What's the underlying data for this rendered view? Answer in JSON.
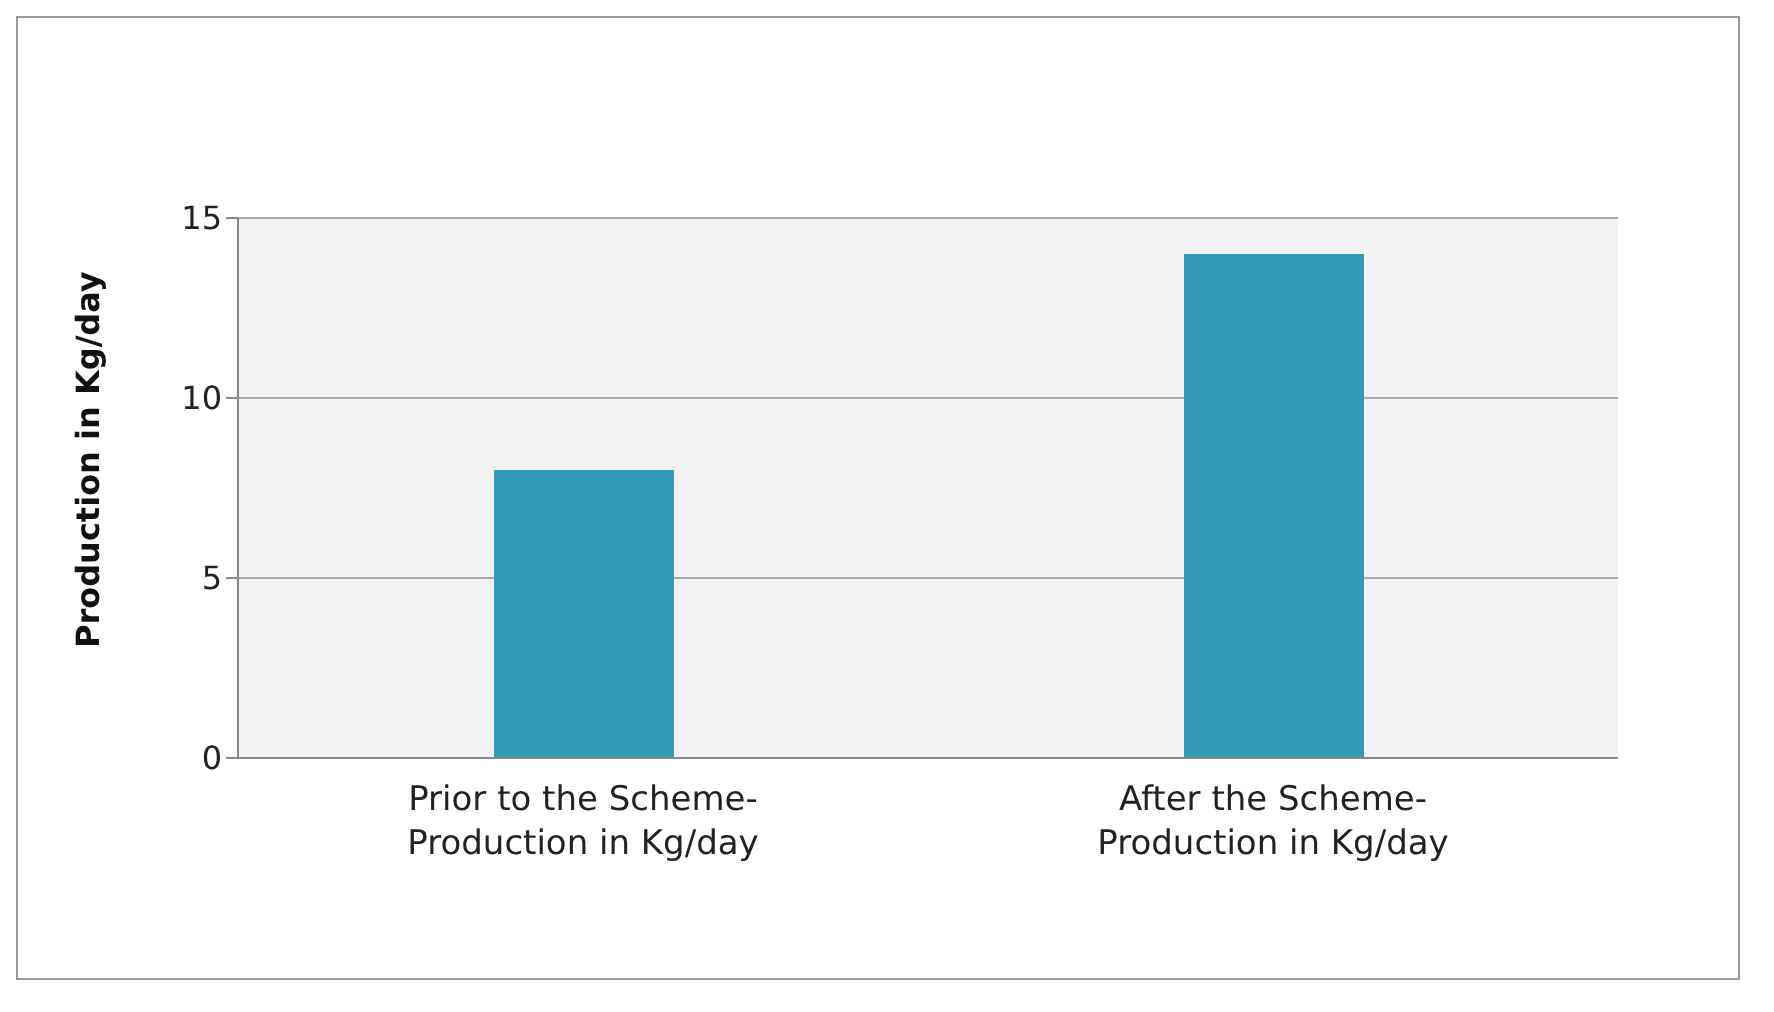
{
  "chart_data": {
    "type": "bar",
    "ylabel": "Production in Kg/day",
    "categories": [
      "Prior to the Scheme-\nProduction in Kg/day",
      "After the Scheme-\nProduction in Kg/day"
    ],
    "values": [
      8,
      14
    ],
    "color": "#2f9bb5",
    "ylim": [
      0,
      15
    ],
    "yticks": [
      0,
      5,
      10,
      15
    ],
    "grid": "y"
  }
}
